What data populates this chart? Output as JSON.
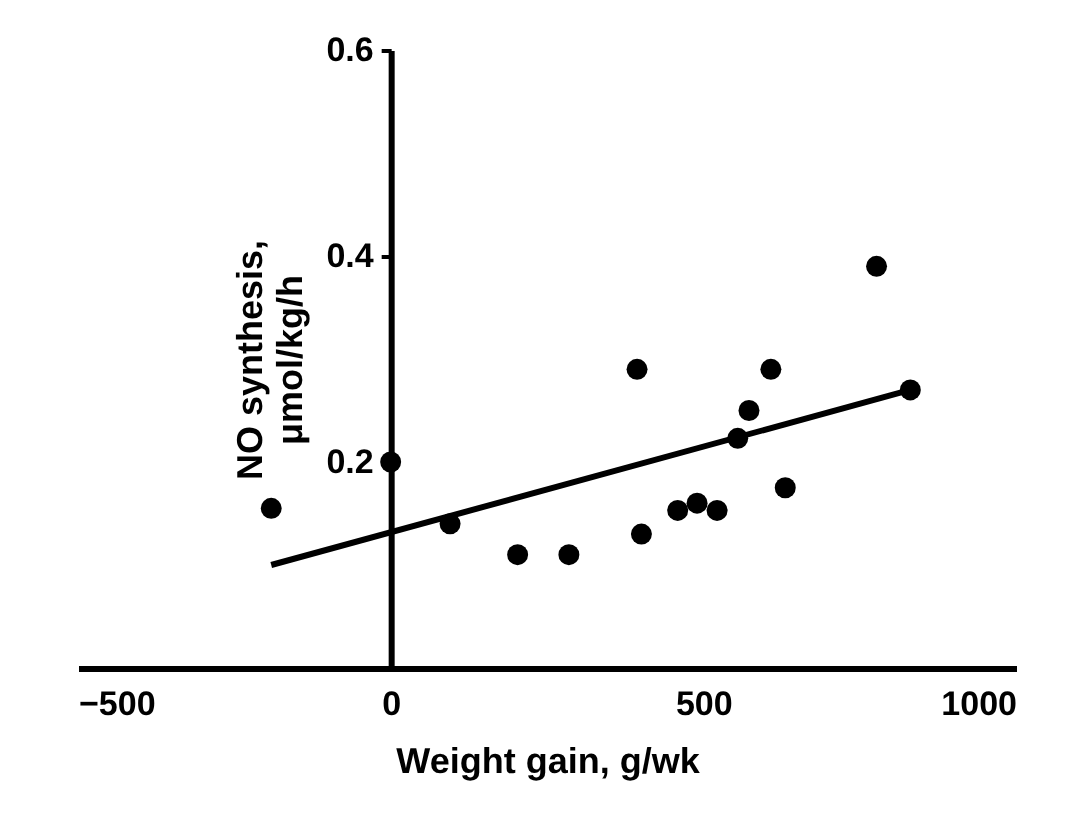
{
  "chart_data": {
    "type": "scatter",
    "xlabel": "Weight gain, g/wk",
    "ylabel": "NO synthesis,\nμmol/kg/h",
    "x": [
      -191,
      0,
      95,
      203,
      285,
      394,
      401,
      459,
      490,
      522,
      555,
      573,
      608,
      631,
      777,
      831
    ],
    "series": [
      {
        "color": "#000000",
        "marker": "circle",
        "values": [
          0.155,
          0.2,
          0.14,
          0.11,
          0.11,
          0.29,
          0.13,
          0.153,
          0.16,
          0.153,
          0.223,
          0.25,
          0.29,
          0.175,
          0.39,
          0.27
        ]
      },
      {
        "type": "line",
        "color": "#000000",
        "line_style": "solid",
        "x": [
          -191,
          831
        ],
        "values": [
          0.1,
          0.27
        ]
      }
    ],
    "xlim": [
      -500,
      1000
    ],
    "ylim": [
      0,
      0.6
    ],
    "xticks": [
      -500,
      0,
      500,
      1000
    ],
    "yticks": [
      0.2,
      0.4,
      0.6
    ],
    "grid": false
  }
}
